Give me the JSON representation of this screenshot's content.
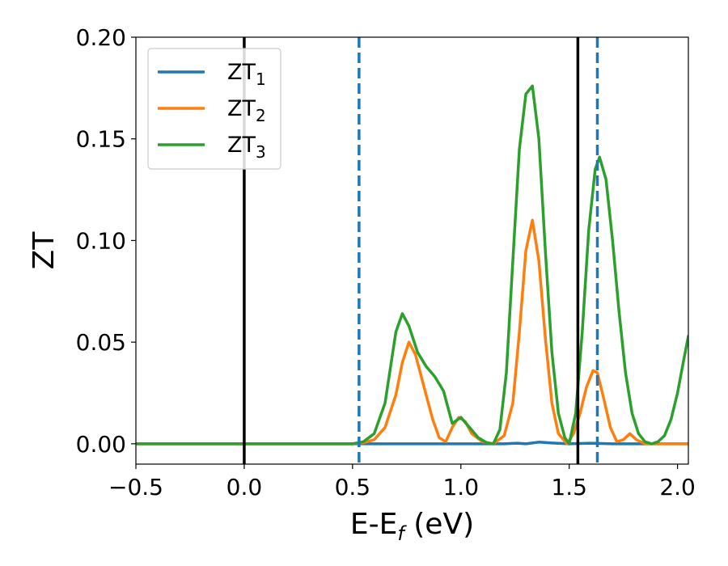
{
  "chart_data": {
    "type": "line",
    "xlabel": "E-E",
    "xlabel_sub": "f",
    "xlabel_unit": " (eV)",
    "ylabel": "ZT",
    "xlim": [
      -0.5,
      2.05
    ],
    "ylim": [
      -0.01,
      0.2
    ],
    "x_ticks": [
      -0.5,
      0.0,
      0.5,
      1.0,
      1.5,
      2.0
    ],
    "x_tick_labels": [
      "−0.5",
      "0.0",
      "0.5",
      "1.0",
      "1.5",
      "2.0"
    ],
    "y_ticks": [
      0.0,
      0.05,
      0.1,
      0.15,
      0.2
    ],
    "y_tick_labels": [
      "0.00",
      "0.05",
      "0.10",
      "0.15",
      "0.20"
    ],
    "grid": false,
    "legend_position": "top-left",
    "vertical_lines": [
      {
        "x": 0.0,
        "style": "solid",
        "color": "#000000"
      },
      {
        "x": 1.54,
        "style": "solid",
        "color": "#000000"
      },
      {
        "x": 0.53,
        "style": "dashed",
        "color": "#1f77b4"
      },
      {
        "x": 1.63,
        "style": "dashed",
        "color": "#1f77b4"
      }
    ],
    "series": [
      {
        "name": "ZT",
        "name_sub": "1",
        "color": "#1f77b4",
        "x": [
          -0.5,
          0.5,
          1.0,
          1.2,
          1.26,
          1.3,
          1.36,
          1.42,
          1.5,
          1.6,
          1.7,
          1.8,
          2.05
        ],
        "y": [
          0.0,
          0.0,
          0.0,
          0.0,
          0.0003,
          0.0,
          0.0008,
          0.0004,
          0.0,
          0.0003,
          0.0,
          0.0,
          0.0
        ]
      },
      {
        "name": "ZT",
        "name_sub": "2",
        "color": "#ff7f0e",
        "x": [
          -0.5,
          0.5,
          0.55,
          0.6,
          0.65,
          0.7,
          0.73,
          0.76,
          0.79,
          0.83,
          0.87,
          0.9,
          0.93,
          0.96,
          0.99,
          1.02,
          1.05,
          1.1,
          1.15,
          1.2,
          1.24,
          1.27,
          1.3,
          1.33,
          1.36,
          1.39,
          1.42,
          1.45,
          1.49,
          1.52,
          1.55,
          1.58,
          1.61,
          1.63,
          1.66,
          1.69,
          1.72,
          1.75,
          1.78,
          1.81,
          1.85,
          2.05
        ],
        "y": [
          0.0,
          0.0,
          0.0005,
          0.002,
          0.008,
          0.024,
          0.04,
          0.05,
          0.044,
          0.028,
          0.012,
          0.003,
          0.001,
          0.008,
          0.013,
          0.011,
          0.005,
          0.001,
          0.0,
          0.004,
          0.02,
          0.055,
          0.095,
          0.11,
          0.09,
          0.052,
          0.02,
          0.005,
          0.0,
          0.005,
          0.015,
          0.028,
          0.036,
          0.035,
          0.022,
          0.008,
          0.001,
          0.002,
          0.005,
          0.002,
          0.0,
          0.0
        ]
      },
      {
        "name": "ZT",
        "name_sub": "3",
        "color": "#2ca02c",
        "x": [
          -0.5,
          0.5,
          0.55,
          0.6,
          0.65,
          0.7,
          0.73,
          0.76,
          0.8,
          0.84,
          0.88,
          0.92,
          0.96,
          1.0,
          1.04,
          1.08,
          1.12,
          1.15,
          1.18,
          1.21,
          1.24,
          1.27,
          1.3,
          1.33,
          1.36,
          1.39,
          1.42,
          1.45,
          1.48,
          1.5,
          1.53,
          1.56,
          1.59,
          1.62,
          1.64,
          1.67,
          1.7,
          1.73,
          1.76,
          1.79,
          1.82,
          1.85,
          1.88,
          1.91,
          1.94,
          1.97,
          2.0,
          2.03,
          2.05
        ],
        "y": [
          0.0,
          0.0,
          0.001,
          0.005,
          0.02,
          0.055,
          0.064,
          0.058,
          0.045,
          0.038,
          0.033,
          0.026,
          0.01,
          0.013,
          0.008,
          0.003,
          0.0005,
          0.0,
          0.007,
          0.035,
          0.09,
          0.145,
          0.172,
          0.176,
          0.15,
          0.095,
          0.045,
          0.015,
          0.003,
          0.0,
          0.015,
          0.055,
          0.105,
          0.135,
          0.141,
          0.13,
          0.1,
          0.065,
          0.035,
          0.015,
          0.005,
          0.001,
          0.0,
          0.001,
          0.004,
          0.012,
          0.025,
          0.042,
          0.053
        ]
      }
    ]
  }
}
